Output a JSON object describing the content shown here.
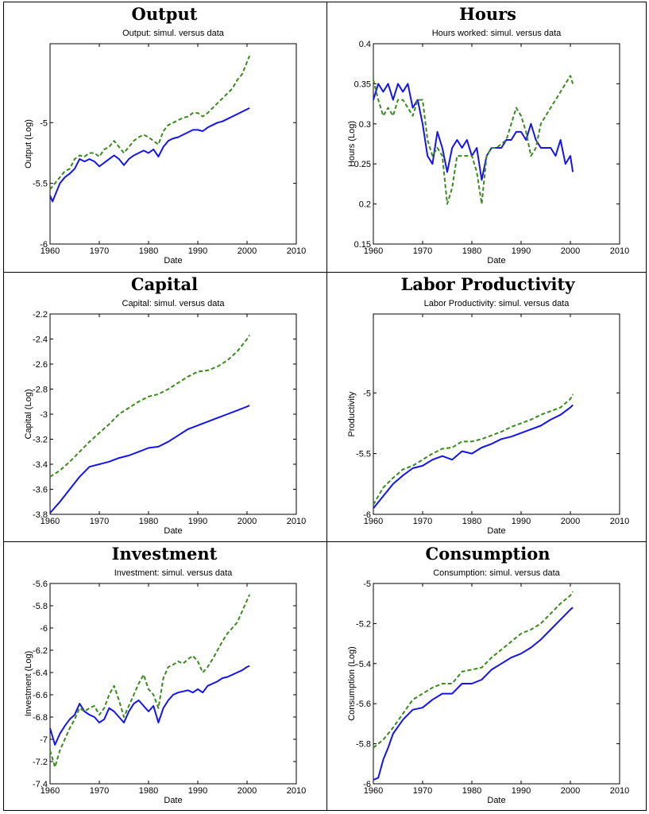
{
  "colors": {
    "simul": "#1414f0",
    "data": "#3a8a1e"
  },
  "chart_data": [
    {
      "panel_title": "Output",
      "subtitle": "Output: simul. versus data",
      "type": "line",
      "xlabel": "Date",
      "ylabel": "Output (Log)",
      "xlim": [
        1960,
        2010
      ],
      "ylim": [
        -6,
        -4.35
      ],
      "xticks": [
        1960,
        1970,
        1980,
        1990,
        2000,
        2010
      ],
      "yticks": [
        -6,
        -5.5,
        -5
      ],
      "series": [
        {
          "style": "solid",
          "x": [
            1960,
            1960.5,
            1961,
            1962,
            1963,
            1964,
            1965,
            1966,
            1967,
            1968,
            1969,
            1970,
            1971,
            1972,
            1973,
            1974,
            1975,
            1976,
            1977,
            1978,
            1979,
            1980,
            1981,
            1982,
            1983,
            1984,
            1985,
            1986,
            1987,
            1988,
            1989,
            1990,
            1991,
            1992,
            1993,
            1994,
            1995,
            1996,
            1997,
            1998,
            1999,
            2000,
            2000.5
          ],
          "y": [
            -5.6,
            -5.65,
            -5.6,
            -5.5,
            -5.45,
            -5.42,
            -5.38,
            -5.3,
            -5.32,
            -5.3,
            -5.32,
            -5.36,
            -5.33,
            -5.3,
            -5.27,
            -5.3,
            -5.35,
            -5.3,
            -5.27,
            -5.25,
            -5.23,
            -5.25,
            -5.22,
            -5.28,
            -5.2,
            -5.15,
            -5.13,
            -5.12,
            -5.1,
            -5.08,
            -5.06,
            -5.06,
            -5.07,
            -5.04,
            -5.02,
            -5.0,
            -4.99,
            -4.97,
            -4.95,
            -4.93,
            -4.91,
            -4.89,
            -4.88
          ]
        },
        {
          "style": "dashed",
          "x": [
            1960,
            1961,
            1962,
            1963,
            1964,
            1965,
            1966,
            1967,
            1968,
            1969,
            1970,
            1971,
            1972,
            1973,
            1974,
            1975,
            1976,
            1977,
            1978,
            1979,
            1980,
            1981,
            1982,
            1983,
            1984,
            1985,
            1986,
            1987,
            1988,
            1989,
            1990,
            1991,
            1992,
            1993,
            1994,
            1995,
            1996,
            1997,
            1998,
            1999,
            2000,
            2000.5
          ],
          "y": [
            -5.55,
            -5.5,
            -5.45,
            -5.4,
            -5.38,
            -5.3,
            -5.27,
            -5.28,
            -5.25,
            -5.25,
            -5.28,
            -5.22,
            -5.2,
            -5.15,
            -5.2,
            -5.25,
            -5.2,
            -5.15,
            -5.12,
            -5.1,
            -5.12,
            -5.15,
            -5.18,
            -5.07,
            -5.02,
            -5.0,
            -4.98,
            -4.96,
            -4.95,
            -4.92,
            -4.92,
            -4.95,
            -4.92,
            -4.88,
            -4.84,
            -4.8,
            -4.76,
            -4.72,
            -4.65,
            -4.6,
            -4.5,
            -4.45
          ]
        }
      ]
    },
    {
      "panel_title": "Hours",
      "subtitle": "Hours worked: simul. versus data",
      "type": "line",
      "xlabel": "Date",
      "ylabel": "Hours (Log)",
      "xlim": [
        1960,
        2010
      ],
      "ylim": [
        0.15,
        0.4
      ],
      "xticks": [
        1960,
        1970,
        1980,
        1990,
        2000,
        2010
      ],
      "yticks": [
        0.15,
        0.2,
        0.25,
        0.3,
        0.35,
        0.4
      ],
      "series": [
        {
          "style": "solid",
          "x": [
            1960,
            1961,
            1962,
            1963,
            1964,
            1965,
            1966,
            1967,
            1968,
            1969,
            1970,
            1971,
            1972,
            1973,
            1974,
            1975,
            1976,
            1977,
            1978,
            1979,
            1980,
            1981,
            1982,
            1983,
            1984,
            1985,
            1986,
            1987,
            1988,
            1989,
            1990,
            1991,
            1992,
            1993,
            1994,
            1995,
            1996,
            1997,
            1998,
            1999,
            2000,
            2000.5
          ],
          "y": [
            0.33,
            0.35,
            0.34,
            0.35,
            0.33,
            0.35,
            0.34,
            0.35,
            0.32,
            0.33,
            0.3,
            0.26,
            0.25,
            0.29,
            0.27,
            0.24,
            0.27,
            0.28,
            0.27,
            0.28,
            0.26,
            0.27,
            0.23,
            0.26,
            0.27,
            0.27,
            0.27,
            0.28,
            0.28,
            0.29,
            0.29,
            0.28,
            0.3,
            0.28,
            0.27,
            0.27,
            0.27,
            0.26,
            0.28,
            0.25,
            0.26,
            0.24
          ]
        },
        {
          "style": "dashed",
          "x": [
            1960,
            1961,
            1962,
            1963,
            1964,
            1965,
            1966,
            1967,
            1968,
            1969,
            1970,
            1971,
            1972,
            1973,
            1974,
            1975,
            1976,
            1977,
            1978,
            1979,
            1980,
            1981,
            1982,
            1983,
            1984,
            1985,
            1986,
            1987,
            1988,
            1989,
            1990,
            1991,
            1992,
            1993,
            1994,
            1995,
            1996,
            1997,
            1998,
            1999,
            2000,
            2000.5
          ],
          "y": [
            0.355,
            0.33,
            0.31,
            0.32,
            0.31,
            0.33,
            0.33,
            0.32,
            0.31,
            0.33,
            0.33,
            0.28,
            0.26,
            0.27,
            0.26,
            0.2,
            0.22,
            0.26,
            0.26,
            0.26,
            0.26,
            0.24,
            0.2,
            0.26,
            0.27,
            0.27,
            0.275,
            0.28,
            0.3,
            0.32,
            0.31,
            0.29,
            0.26,
            0.27,
            0.3,
            0.31,
            0.32,
            0.33,
            0.34,
            0.35,
            0.36,
            0.35
          ]
        }
      ]
    },
    {
      "panel_title": "Capital",
      "subtitle": "Capital: simul. versus data",
      "type": "line",
      "xlabel": "Date",
      "ylabel": "Capital (Log)",
      "xlim": [
        1960,
        2010
      ],
      "ylim": [
        -3.8,
        -2.2
      ],
      "xticks": [
        1960,
        1970,
        1980,
        1990,
        2000,
        2010
      ],
      "yticks": [
        -3.8,
        -3.6,
        -3.4,
        -3.2,
        -3,
        -2.8,
        -2.6,
        -2.4,
        -2.2
      ],
      "series": [
        {
          "style": "solid",
          "x": [
            1960,
            1962,
            1964,
            1966,
            1968,
            1970,
            1972,
            1974,
            1976,
            1978,
            1980,
            1982,
            1984,
            1986,
            1988,
            1990,
            1992,
            1994,
            1996,
            1998,
            2000,
            2000.5
          ],
          "y": [
            -3.79,
            -3.7,
            -3.6,
            -3.5,
            -3.42,
            -3.4,
            -3.38,
            -3.35,
            -3.33,
            -3.3,
            -3.27,
            -3.26,
            -3.22,
            -3.17,
            -3.12,
            -3.09,
            -3.06,
            -3.03,
            -3.0,
            -2.97,
            -2.94,
            -2.93
          ]
        },
        {
          "style": "dashed",
          "x": [
            1960,
            1962,
            1964,
            1966,
            1968,
            1970,
            1972,
            1974,
            1976,
            1978,
            1980,
            1982,
            1984,
            1986,
            1988,
            1990,
            1992,
            1994,
            1996,
            1998,
            2000,
            2000.5
          ],
          "y": [
            -3.5,
            -3.45,
            -3.38,
            -3.3,
            -3.22,
            -3.15,
            -3.08,
            -3.0,
            -2.95,
            -2.9,
            -2.86,
            -2.84,
            -2.8,
            -2.75,
            -2.7,
            -2.66,
            -2.65,
            -2.62,
            -2.57,
            -2.5,
            -2.4,
            -2.37
          ]
        }
      ]
    },
    {
      "panel_title": "Labor Productivity",
      "subtitle": "Labor Productivity: simul. versus data",
      "type": "line",
      "xlabel": "Date",
      "ylabel": "Productivity",
      "xlim": [
        1960,
        2010
      ],
      "ylim": [
        -6,
        -4.35
      ],
      "xticks": [
        1960,
        1970,
        1980,
        1990,
        2000,
        2010
      ],
      "yticks": [
        -6,
        -5.5,
        -5
      ],
      "series": [
        {
          "style": "solid",
          "x": [
            1960,
            1961,
            1962,
            1964,
            1966,
            1968,
            1970,
            1972,
            1974,
            1976,
            1978,
            1980,
            1982,
            1984,
            1986,
            1988,
            1990,
            1992,
            1994,
            1996,
            1998,
            2000,
            2000.5
          ],
          "y": [
            -5.95,
            -5.9,
            -5.85,
            -5.75,
            -5.68,
            -5.62,
            -5.6,
            -5.55,
            -5.52,
            -5.55,
            -5.48,
            -5.5,
            -5.45,
            -5.42,
            -5.38,
            -5.36,
            -5.33,
            -5.3,
            -5.27,
            -5.22,
            -5.18,
            -5.12,
            -5.1
          ]
        },
        {
          "style": "dashed",
          "x": [
            1960,
            1961,
            1962,
            1964,
            1966,
            1968,
            1970,
            1972,
            1974,
            1976,
            1978,
            1980,
            1982,
            1984,
            1986,
            1988,
            1990,
            1992,
            1994,
            1996,
            1998,
            2000,
            2000.5
          ],
          "y": [
            -5.92,
            -5.85,
            -5.78,
            -5.7,
            -5.63,
            -5.6,
            -5.55,
            -5.5,
            -5.46,
            -5.45,
            -5.4,
            -5.4,
            -5.38,
            -5.35,
            -5.32,
            -5.28,
            -5.25,
            -5.22,
            -5.18,
            -5.15,
            -5.12,
            -5.05,
            -5.01
          ]
        }
      ]
    },
    {
      "panel_title": "Investment",
      "subtitle": "Investment: simul. versus data",
      "type": "line",
      "xlabel": "Date",
      "ylabel": "Investment (Log)",
      "xlim": [
        1960,
        2010
      ],
      "ylim": [
        -7.4,
        -5.6
      ],
      "xticks": [
        1960,
        1970,
        1980,
        1990,
        2000,
        2010
      ],
      "yticks": [
        -7.4,
        -7.2,
        -7,
        -6.8,
        -6.6,
        -6.4,
        -6.2,
        -6,
        -5.8,
        -5.6
      ],
      "series": [
        {
          "style": "solid",
          "x": [
            1960,
            1961,
            1962,
            1963,
            1964,
            1965,
            1966,
            1967,
            1968,
            1969,
            1970,
            1971,
            1972,
            1973,
            1974,
            1975,
            1976,
            1977,
            1978,
            1979,
            1980,
            1981,
            1982,
            1983,
            1984,
            1985,
            1986,
            1987,
            1988,
            1989,
            1990,
            1991,
            1992,
            1993,
            1994,
            1995,
            1996,
            1997,
            1998,
            1999,
            2000,
            2000.5
          ],
          "y": [
            -6.9,
            -7.05,
            -6.95,
            -6.88,
            -6.82,
            -6.78,
            -6.68,
            -6.75,
            -6.78,
            -6.8,
            -6.85,
            -6.82,
            -6.72,
            -6.75,
            -6.8,
            -6.85,
            -6.75,
            -6.68,
            -6.65,
            -6.7,
            -6.75,
            -6.7,
            -6.85,
            -6.72,
            -6.65,
            -6.6,
            -6.58,
            -6.57,
            -6.56,
            -6.58,
            -6.55,
            -6.58,
            -6.52,
            -6.5,
            -6.48,
            -6.45,
            -6.44,
            -6.42,
            -6.4,
            -6.38,
            -6.35,
            -6.34
          ]
        },
        {
          "style": "dashed",
          "x": [
            1960,
            1961,
            1962,
            1963,
            1964,
            1965,
            1966,
            1967,
            1968,
            1969,
            1970,
            1971,
            1972,
            1973,
            1974,
            1975,
            1976,
            1977,
            1978,
            1979,
            1980,
            1981,
            1982,
            1983,
            1984,
            1985,
            1986,
            1987,
            1988,
            1989,
            1990,
            1991,
            1992,
            1993,
            1994,
            1995,
            1996,
            1997,
            1998,
            1999,
            2000,
            2000.5
          ],
          "y": [
            -7.1,
            -7.25,
            -7.1,
            -7.0,
            -6.9,
            -6.82,
            -6.72,
            -6.75,
            -6.72,
            -6.7,
            -6.78,
            -6.72,
            -6.6,
            -6.52,
            -6.65,
            -6.8,
            -6.7,
            -6.6,
            -6.5,
            -6.42,
            -6.55,
            -6.6,
            -6.72,
            -6.45,
            -6.35,
            -6.33,
            -6.3,
            -6.32,
            -6.28,
            -6.25,
            -6.3,
            -6.4,
            -6.35,
            -6.28,
            -6.2,
            -6.12,
            -6.05,
            -6.0,
            -5.95,
            -5.85,
            -5.75,
            -5.7
          ]
        }
      ]
    },
    {
      "panel_title": "Consumption",
      "subtitle": "Consumption: simul. versus data",
      "type": "line",
      "xlabel": "Date",
      "ylabel": "Consumption (Log)",
      "xlim": [
        1960,
        2010
      ],
      "ylim": [
        -6,
        -5
      ],
      "xticks": [
        1960,
        1970,
        1980,
        1990,
        2000,
        2010
      ],
      "yticks": [
        -6,
        -5.8,
        -5.6,
        -5.4,
        -5.2,
        -5
      ],
      "series": [
        {
          "style": "solid",
          "x": [
            1960,
            1961,
            1962,
            1963,
            1964,
            1966,
            1968,
            1970,
            1972,
            1974,
            1976,
            1978,
            1980,
            1982,
            1984,
            1986,
            1988,
            1990,
            1992,
            1994,
            1996,
            1998,
            2000,
            2000.5
          ],
          "y": [
            -5.98,
            -5.97,
            -5.88,
            -5.82,
            -5.75,
            -5.68,
            -5.63,
            -5.62,
            -5.58,
            -5.55,
            -5.55,
            -5.5,
            -5.5,
            -5.48,
            -5.43,
            -5.4,
            -5.37,
            -5.35,
            -5.32,
            -5.28,
            -5.23,
            -5.18,
            -5.13,
            -5.12
          ]
        },
        {
          "style": "dashed",
          "x": [
            1960,
            1961,
            1962,
            1963,
            1964,
            1966,
            1968,
            1970,
            1972,
            1974,
            1976,
            1978,
            1980,
            1982,
            1984,
            1986,
            1988,
            1990,
            1992,
            1994,
            1996,
            1998,
            2000,
            2000.5
          ],
          "y": [
            -5.82,
            -5.8,
            -5.78,
            -5.75,
            -5.72,
            -5.65,
            -5.58,
            -5.55,
            -5.52,
            -5.5,
            -5.5,
            -5.44,
            -5.43,
            -5.42,
            -5.37,
            -5.33,
            -5.29,
            -5.25,
            -5.23,
            -5.2,
            -5.15,
            -5.1,
            -5.06,
            -5.04
          ]
        }
      ]
    }
  ]
}
